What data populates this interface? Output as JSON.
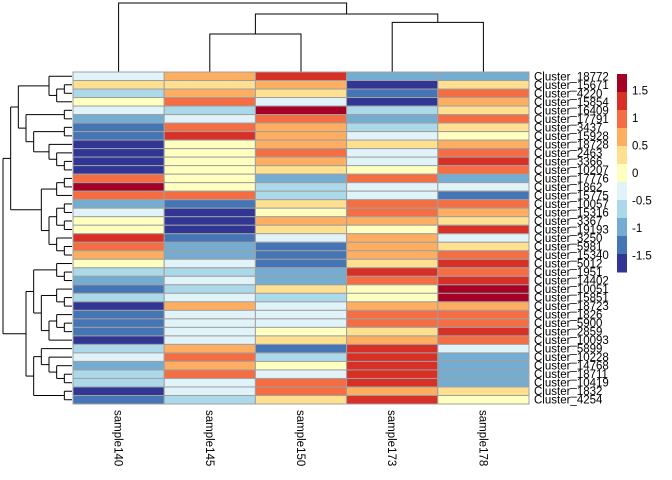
{
  "chart_data": {
    "type": "heatmap",
    "title": "",
    "columns": [
      "sample140",
      "sample145",
      "sample150",
      "sample173",
      "sample178"
    ],
    "rows": [
      "Cluster_18772",
      "Cluster_15671",
      "Cluster_4220",
      "Cluster_15854",
      "Cluster_16409",
      "Cluster_17791",
      "Cluster_3437",
      "Cluster_15928",
      "Cluster_18728",
      "Cluster_2463",
      "Cluster_3366",
      "Cluster_10207",
      "Cluster_17776",
      "Cluster_1862",
      "Cluster_15775",
      "Cluster_10057",
      "Cluster_15316",
      "Cluster_3367",
      "Cluster_19193",
      "Cluster_3250",
      "Cluster_5981",
      "Cluster_15340",
      "Cluster_5012",
      "Cluster_1951",
      "Cluster_14402",
      "Cluster_10051",
      "Cluster_15851",
      "Cluster_18723",
      "Cluster_1826",
      "Cluster_5900",
      "Cluster_2859",
      "Cluster_10093",
      "Cluster_5899",
      "Cluster_10228",
      "Cluster_14768",
      "Cluster_18711",
      "Cluster_10419",
      "Cluster_1832",
      "Cluster_4254"
    ],
    "values": [
      [
        -0.3,
        0.6,
        1.4,
        -1.0,
        -1.0
      ],
      [
        0.3,
        0.3,
        0.6,
        -1.6,
        0.3
      ],
      [
        -0.7,
        0.6,
        0.3,
        -1.3,
        1.0
      ],
      [
        0.0,
        1.0,
        -0.3,
        -1.6,
        0.6
      ],
      [
        -0.3,
        -0.7,
        1.7,
        -0.7,
        0.3
      ],
      [
        -1.0,
        -0.3,
        1.0,
        -1.0,
        1.0
      ],
      [
        -1.3,
        1.0,
        0.6,
        -0.7,
        0.3
      ],
      [
        -1.3,
        1.4,
        0.6,
        -0.3,
        0.0
      ],
      [
        -1.6,
        0.0,
        0.6,
        0.3,
        0.6
      ],
      [
        -1.6,
        0.0,
        1.0,
        -0.3,
        1.0
      ],
      [
        -1.6,
        0.0,
        0.6,
        -0.3,
        1.4
      ],
      [
        -1.6,
        0.0,
        0.3,
        0.0,
        1.0
      ],
      [
        1.0,
        0.0,
        -1.0,
        1.0,
        -1.0
      ],
      [
        1.7,
        0.0,
        -0.7,
        -0.3,
        -0.3
      ],
      [
        1.0,
        1.0,
        -0.7,
        -0.3,
        -1.3
      ],
      [
        -1.0,
        -1.3,
        0.3,
        1.0,
        1.0
      ],
      [
        -0.3,
        -1.6,
        0.0,
        1.0,
        0.6
      ],
      [
        0.0,
        -1.6,
        0.6,
        0.6,
        0.3
      ],
      [
        0.0,
        -1.6,
        0.3,
        0.0,
        1.4
      ],
      [
        1.4,
        -1.3,
        -0.3,
        0.6,
        -0.3
      ],
      [
        1.0,
        -1.0,
        -1.3,
        0.6,
        0.3
      ],
      [
        0.6,
        -1.0,
        -1.3,
        0.6,
        1.0
      ],
      [
        0.0,
        -0.3,
        -1.3,
        0.3,
        1.4
      ],
      [
        -0.7,
        -0.7,
        -1.0,
        1.4,
        1.0
      ],
      [
        -1.0,
        -0.3,
        -1.0,
        1.0,
        1.4
      ],
      [
        -1.3,
        -0.7,
        0.3,
        0.0,
        1.7
      ],
      [
        -0.7,
        -0.3,
        -0.7,
        0.0,
        1.7
      ],
      [
        -1.6,
        0.6,
        -0.3,
        0.6,
        0.6
      ],
      [
        -1.3,
        -0.3,
        -0.3,
        1.0,
        1.0
      ],
      [
        -1.3,
        -0.3,
        -0.3,
        1.0,
        1.0
      ],
      [
        -1.3,
        -0.3,
        0.0,
        0.3,
        1.4
      ],
      [
        -1.6,
        -0.3,
        0.3,
        0.6,
        1.0
      ],
      [
        -0.7,
        0.6,
        -1.3,
        1.4,
        -0.3
      ],
      [
        -0.3,
        1.0,
        -0.7,
        1.4,
        -1.0
      ],
      [
        -1.0,
        0.6,
        0.0,
        1.4,
        -1.0
      ],
      [
        -0.7,
        1.0,
        -0.3,
        1.4,
        -1.0
      ],
      [
        -0.7,
        -0.3,
        1.0,
        1.4,
        -1.0
      ],
      [
        -1.6,
        -0.3,
        1.0,
        0.6,
        0.3
      ],
      [
        -1.3,
        -0.7,
        0.3,
        1.4,
        0.0
      ]
    ],
    "color_scale": {
      "min": -1.8,
      "max": 1.8,
      "colors": [
        "#313695",
        "#4575B4",
        "#74ADD1",
        "#ABD9E9",
        "#E0F3F8",
        "#FFFFBF",
        "#FEE090",
        "#FDAE61",
        "#F46D43",
        "#D73027",
        "#A50026"
      ]
    },
    "legend": {
      "placement": "right",
      "ticks": [
        {
          "value": 1.5,
          "label": "1.5"
        },
        {
          "value": 1,
          "label": "1"
        },
        {
          "value": 0.5,
          "label": "0.5"
        },
        {
          "value": 0,
          "label": "0"
        },
        {
          "value": -0.5,
          "label": "-0.5"
        },
        {
          "value": -1,
          "label": "-1"
        },
        {
          "value": -1.5,
          "label": "-1.5"
        }
      ]
    },
    "col_dendrogram": {
      "merges": [
        {
          "left": [
            "sample145"
          ],
          "right": [
            "sample150"
          ],
          "height": 0.55
        },
        {
          "left": [
            "sample173"
          ],
          "right": [
            "sample178"
          ],
          "height": 0.72
        },
        {
          "left": [
            "sample145",
            "sample150"
          ],
          "right": [
            "sample173",
            "sample178"
          ],
          "height": 0.84
        },
        {
          "left": [
            "sample140"
          ],
          "right": [
            "sample145",
            "sample150",
            "sample173",
            "sample178"
          ],
          "height": 1.0
        }
      ]
    },
    "row_dendrogram_present": true
  }
}
